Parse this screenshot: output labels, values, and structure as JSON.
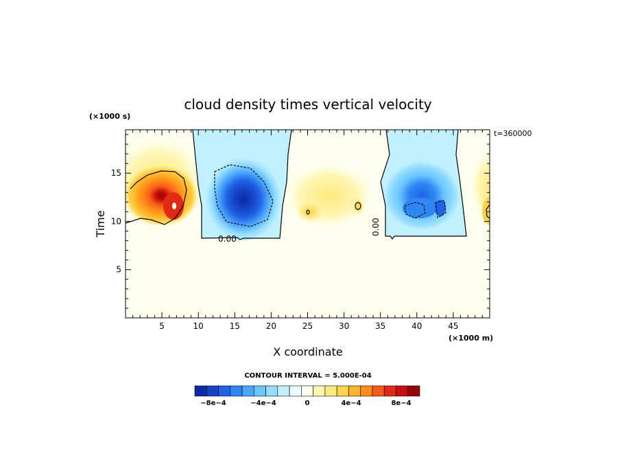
{
  "chart_data": {
    "type": "heatmap",
    "title": "cloud density times vertical velocity",
    "xlabel": "X coordinate",
    "ylabel": "Time",
    "x_unit": "(×1000 m)",
    "y_unit": "(×1000 s)",
    "time_stamp": "t=360000",
    "xlim": [
      0,
      50
    ],
    "ylim": [
      0,
      19.5
    ],
    "x_ticks": [
      "5",
      "10",
      "15",
      "20",
      "25",
      "30",
      "35",
      "40",
      "45"
    ],
    "y_ticks": [
      "5",
      "10",
      "15"
    ],
    "contour_interval": "CONTOUR INTERVAL = 5.000E-04",
    "zero_contour_label": "0.00",
    "colorbar": {
      "labels": [
        "−8e−4",
        "−4e−4",
        "0",
        "4e−4",
        "8e−4"
      ],
      "colors": [
        "#0a2aa6",
        "#1744c7",
        "#1f63e6",
        "#2f86f5",
        "#4aa6fb",
        "#6bc6ff",
        "#93ddff",
        "#c1f0ff",
        "#eafcff",
        "#fffff0",
        "#fff6b4",
        "#ffe97e",
        "#ffd44a",
        "#ffb52a",
        "#ff8c1a",
        "#f75a18",
        "#e32a15",
        "#c8100f",
        "#980505"
      ]
    },
    "features": [
      {
        "x": 6.5,
        "y": 12.0,
        "value": 0.00095,
        "sign": "positive"
      },
      {
        "x": 15.0,
        "y": 12.3,
        "value": -0.00085,
        "sign": "negative"
      },
      {
        "x": 26.0,
        "y": 11.5,
        "value": 0.0003,
        "sign": "positive"
      },
      {
        "x": 31.8,
        "y": 11.8,
        "value": 0.0003,
        "sign": "positive"
      },
      {
        "x": 41.0,
        "y": 12.0,
        "value": -0.0006,
        "sign": "negative"
      },
      {
        "x": 49.5,
        "y": 12.0,
        "value": 0.0004,
        "sign": "positive"
      }
    ]
  }
}
